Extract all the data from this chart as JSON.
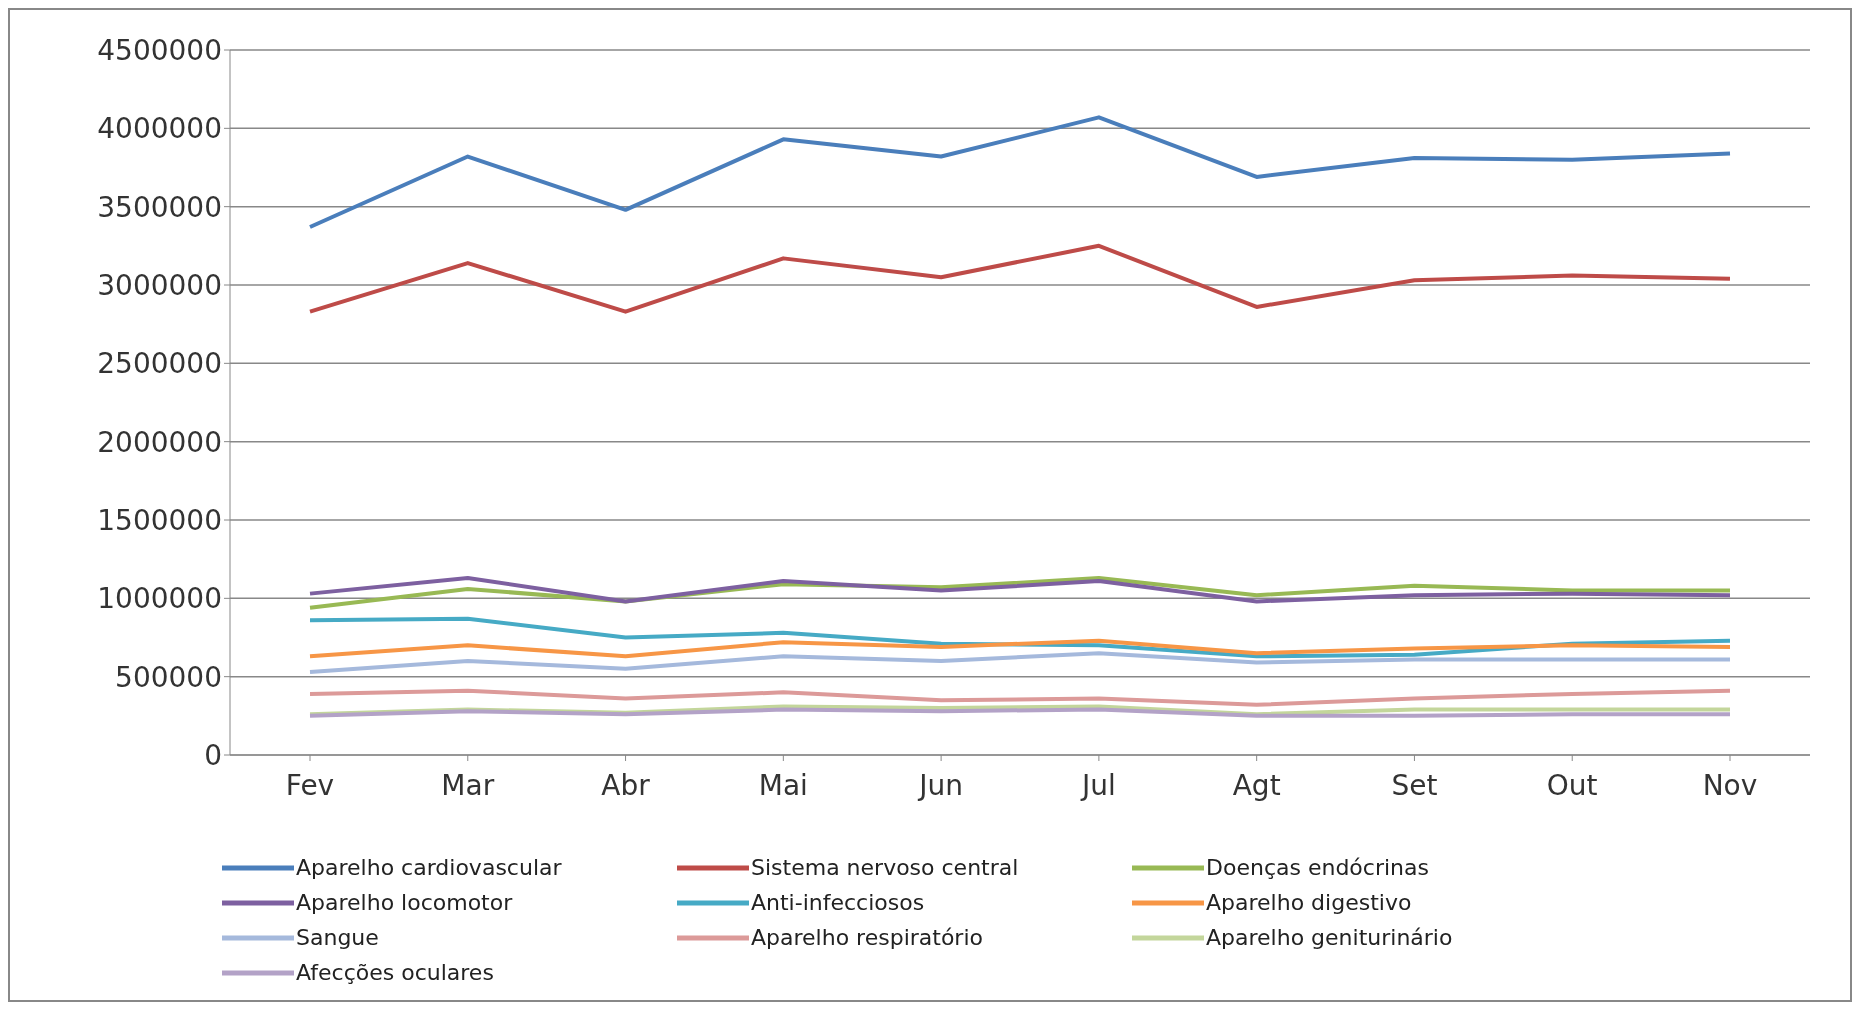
{
  "chart_data": {
    "type": "line",
    "categories": [
      "Fev",
      "Mar",
      "Abr",
      "Mai",
      "Jun",
      "Jul",
      "Agt",
      "Set",
      "Out",
      "Nov"
    ],
    "ylim": [
      0,
      4500000
    ],
    "yticks": [
      0,
      500000,
      1000000,
      1500000,
      2000000,
      2500000,
      3000000,
      3500000,
      4000000,
      4500000
    ],
    "grid": "y",
    "legend": "bottom",
    "marker": "none",
    "line_style": "solid",
    "series": [
      {
        "name": "Aparelho cardiovascular",
        "color": "#4a7ebb",
        "values": [
          3370000,
          3820000,
          3480000,
          3930000,
          3820000,
          4070000,
          3690000,
          3810000,
          3800000,
          3840000
        ]
      },
      {
        "name": "Sistema nervoso central",
        "color": "#be4b48",
        "values": [
          2830000,
          3140000,
          2830000,
          3170000,
          3050000,
          3250000,
          2860000,
          3030000,
          3060000,
          3040000
        ]
      },
      {
        "name": "Doenças endócrinas",
        "color": "#98b954",
        "values": [
          940000,
          1060000,
          980000,
          1090000,
          1070000,
          1130000,
          1020000,
          1080000,
          1050000,
          1050000
        ]
      },
      {
        "name": "Aparelho locomotor",
        "color": "#7d60a0",
        "values": [
          1030000,
          1130000,
          980000,
          1110000,
          1050000,
          1110000,
          980000,
          1020000,
          1030000,
          1020000
        ]
      },
      {
        "name": "Anti-infecciosos",
        "color": "#46aac5",
        "values": [
          860000,
          870000,
          750000,
          780000,
          710000,
          700000,
          630000,
          640000,
          710000,
          730000
        ]
      },
      {
        "name": "Aparelho digestivo",
        "color": "#f79646",
        "values": [
          630000,
          700000,
          630000,
          720000,
          690000,
          730000,
          650000,
          680000,
          700000,
          690000
        ]
      },
      {
        "name": "Sangue",
        "color": "#a5b9dc",
        "values": [
          530000,
          600000,
          550000,
          630000,
          600000,
          650000,
          590000,
          610000,
          610000,
          610000
        ]
      },
      {
        "name": "Aparelho respiratório",
        "color": "#dc9a99",
        "values": [
          390000,
          410000,
          360000,
          400000,
          350000,
          360000,
          320000,
          360000,
          390000,
          410000
        ]
      },
      {
        "name": "Aparelho geniturinário",
        "color": "#c3d69b",
        "values": [
          260000,
          290000,
          270000,
          310000,
          300000,
          310000,
          260000,
          290000,
          290000,
          290000
        ]
      },
      {
        "name": "Afecções oculares",
        "color": "#b3a2c7",
        "values": [
          250000,
          280000,
          260000,
          290000,
          280000,
          290000,
          250000,
          250000,
          260000,
          260000
        ]
      }
    ]
  }
}
